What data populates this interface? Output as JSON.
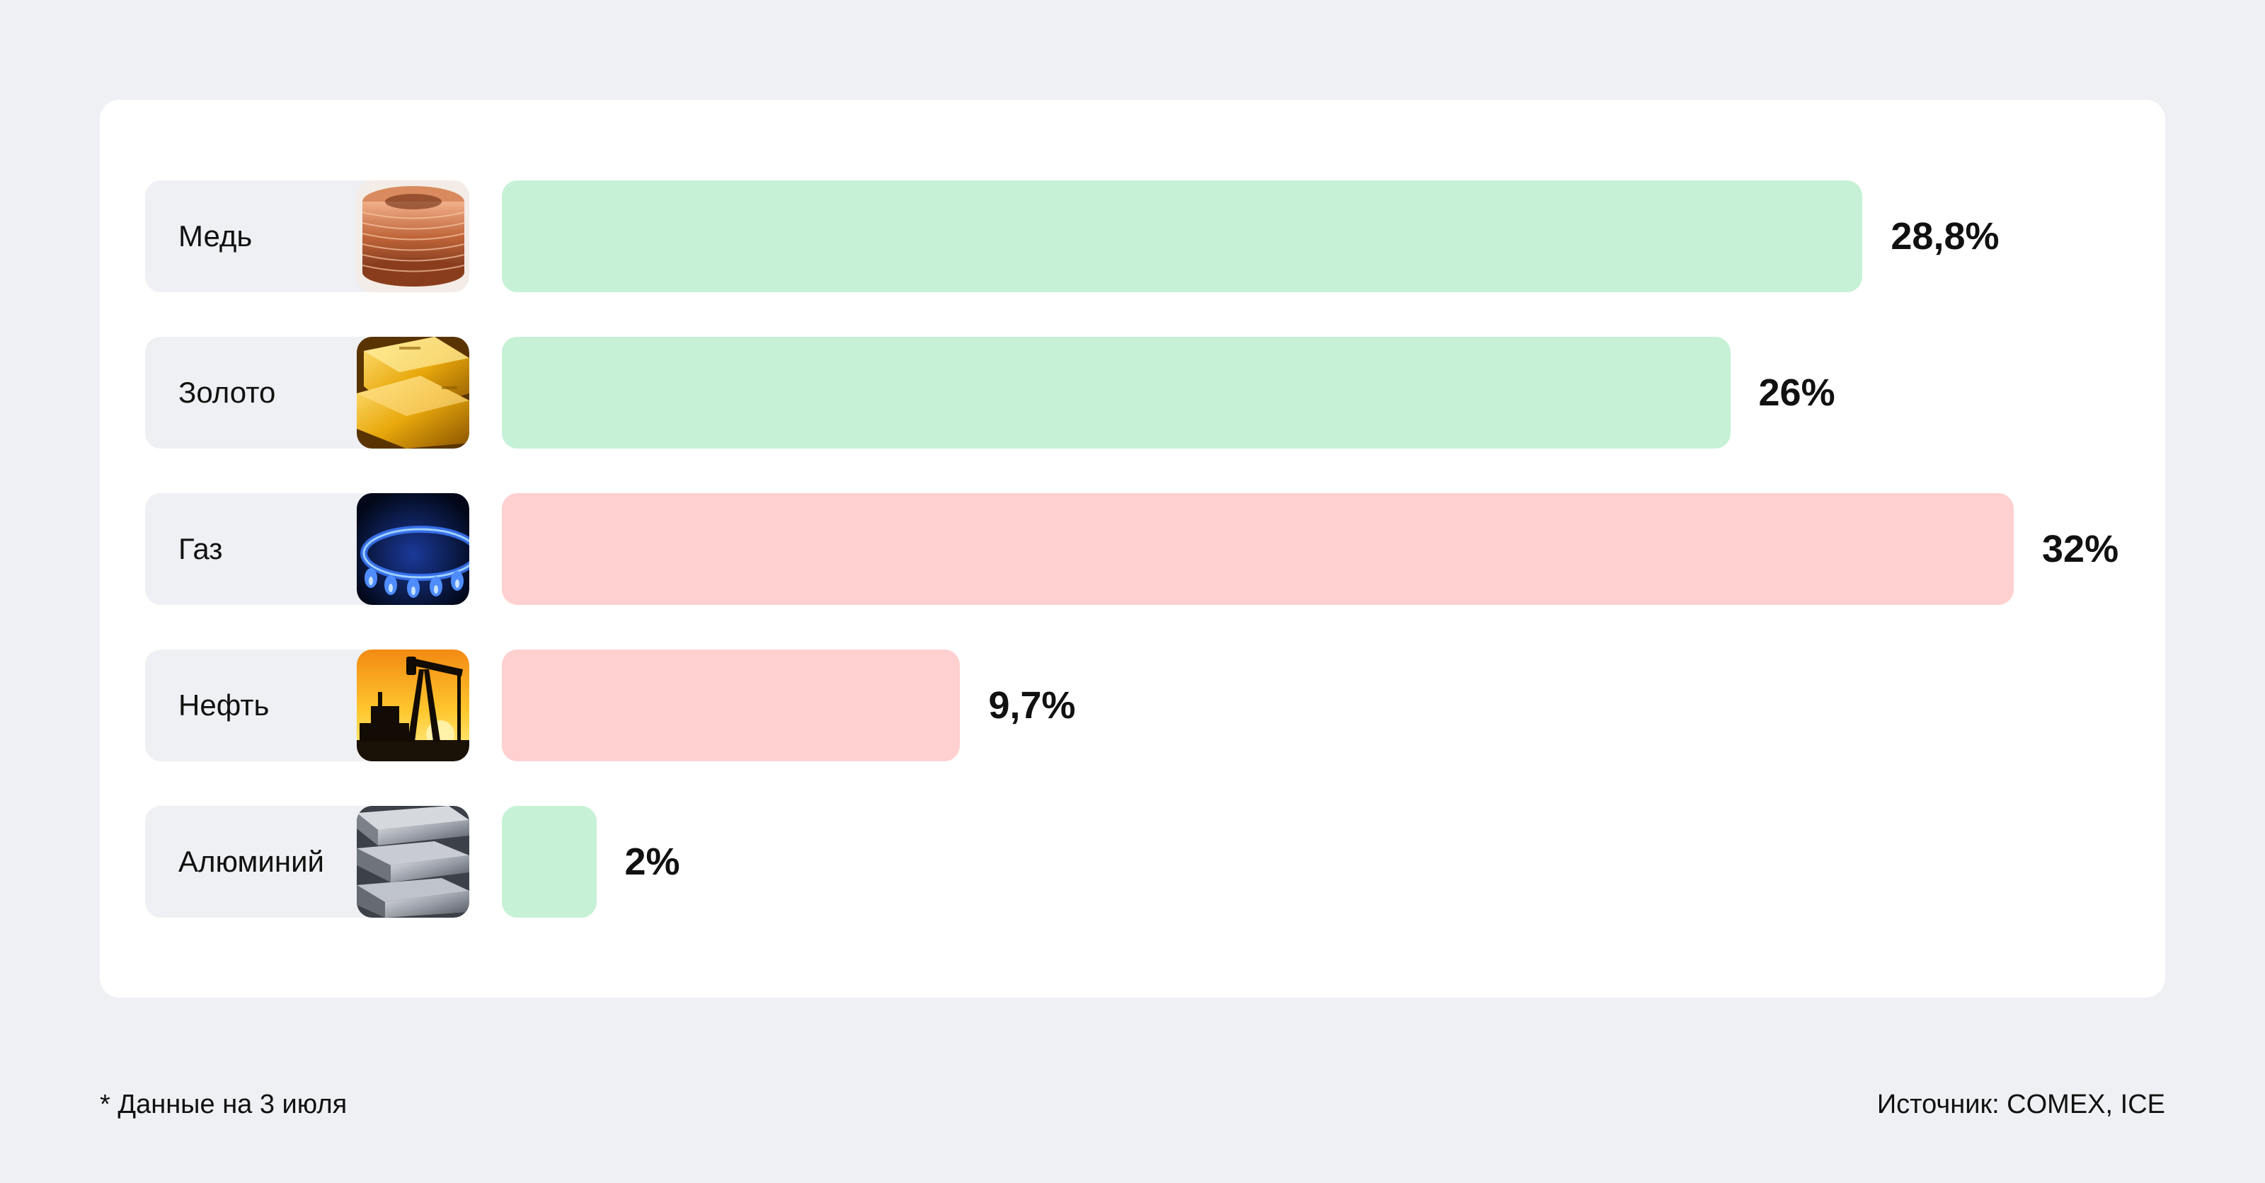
{
  "chart_data": {
    "type": "bar",
    "orientation": "horizontal",
    "categories": [
      "Медь",
      "Золото",
      "Газ",
      "Нефть",
      "Алюминий"
    ],
    "values": [
      28.8,
      26,
      32,
      9.7,
      2
    ],
    "value_labels": [
      "28,8%",
      "26%",
      "32%",
      "9,7%",
      "2%"
    ],
    "direction": [
      "up",
      "up",
      "down",
      "down",
      "up"
    ],
    "icons": [
      "copper-coil-icon",
      "gold-bars-icon",
      "gas-flame-icon",
      "oil-pump-icon",
      "aluminum-bars-icon"
    ],
    "xlim": [
      0,
      32
    ],
    "grid": false,
    "legend": "none",
    "colors": {
      "up": "#c6f1d6",
      "down": "#ffd0d0"
    }
  },
  "footer": {
    "note": "* Данные на 3 июля",
    "source": "Источник: COMEX, ICE"
  }
}
